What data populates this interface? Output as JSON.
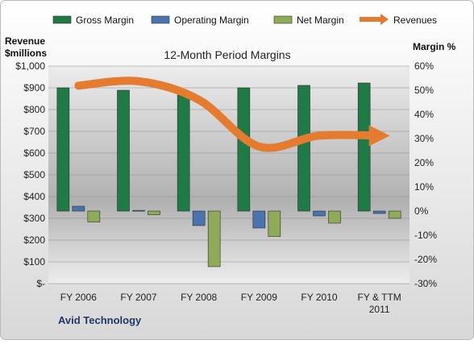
{
  "chart_data": {
    "type": "bar",
    "title": "12-Month Period Margins",
    "company": "Avid Technology",
    "left_axis": {
      "label_line1": "Revenue",
      "label_line2": "$millions",
      "range": [
        0,
        1000
      ],
      "step": 100,
      "tick_labels": [
        "$-",
        "$100",
        "$200",
        "$300",
        "$400",
        "$500",
        "$600",
        "$700",
        "$800",
        "$900",
        "$1,000"
      ]
    },
    "right_axis": {
      "label": "Margin %",
      "range": [
        -30,
        60
      ],
      "step": 10,
      "tick_labels": [
        "-30%",
        "-20%",
        "-10%",
        "0%",
        "10%",
        "20%",
        "30%",
        "40%",
        "50%",
        "60%"
      ]
    },
    "categories": [
      "FY 2006",
      "FY 2007",
      "FY 2008",
      "FY 2009",
      "FY 2010",
      "FY & TTM 2011"
    ],
    "category_labels": [
      [
        "FY 2006"
      ],
      [
        "FY 2007"
      ],
      [
        "FY 2008"
      ],
      [
        "FY 2009"
      ],
      [
        "FY 2010"
      ],
      [
        "FY & TTM",
        "2011"
      ]
    ],
    "series": [
      {
        "name": "Gross Margin",
        "axis": "right",
        "kind": "bar",
        "color": "#1f7a45",
        "values": [
          51,
          50,
          48,
          51,
          52,
          53
        ]
      },
      {
        "name": "Operating Margin",
        "axis": "right",
        "kind": "bar",
        "color": "#4a73b0",
        "values": [
          2,
          0.3,
          -6,
          -7,
          -2,
          -1
        ]
      },
      {
        "name": "Net Margin",
        "axis": "right",
        "kind": "bar",
        "color": "#8fab58",
        "values": [
          -4.5,
          -1.5,
          -23,
          -10.5,
          -5,
          -3
        ]
      },
      {
        "name": "Revenues",
        "axis": "left",
        "kind": "line",
        "color": "#e47b2e",
        "values": [
          910,
          930,
          845,
          630,
          680,
          680
        ]
      }
    ],
    "legend_position": "top",
    "grid": true
  }
}
